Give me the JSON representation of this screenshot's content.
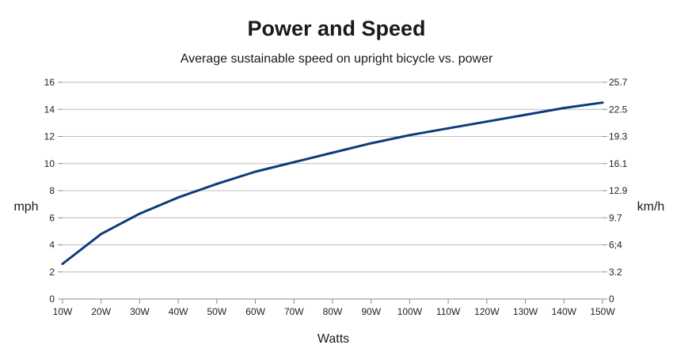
{
  "chart_data": {
    "type": "line",
    "title": "Power and Speed",
    "subtitle": "Average sustainable speed on upright bicycle vs. power",
    "xlabel": "Watts",
    "ylabel": "mph",
    "y2label": "km/h",
    "categories": [
      "10W",
      "20W",
      "30W",
      "40W",
      "50W",
      "60W",
      "70W",
      "80W",
      "90W",
      "100W",
      "110W",
      "120W",
      "130W",
      "140W",
      "150W"
    ],
    "series": [
      {
        "values": [
          2.6,
          4.8,
          6.3,
          7.5,
          8.5,
          9.4,
          10.1,
          10.8,
          11.5,
          12.1,
          12.6,
          13.1,
          13.6,
          14.1,
          14.5
        ],
        "color": "#0b3d78"
      }
    ],
    "ylim": [
      0,
      16
    ],
    "yticks": [
      "0",
      "2",
      "4",
      "6",
      "8",
      "10",
      "12",
      "14",
      "16"
    ],
    "y2ticks": [
      "0",
      "3.2",
      "6;4",
      "9.7",
      "12.9",
      "16.1",
      "19.3",
      "22.5",
      "25.7"
    ],
    "grid": true,
    "legend": "none"
  }
}
